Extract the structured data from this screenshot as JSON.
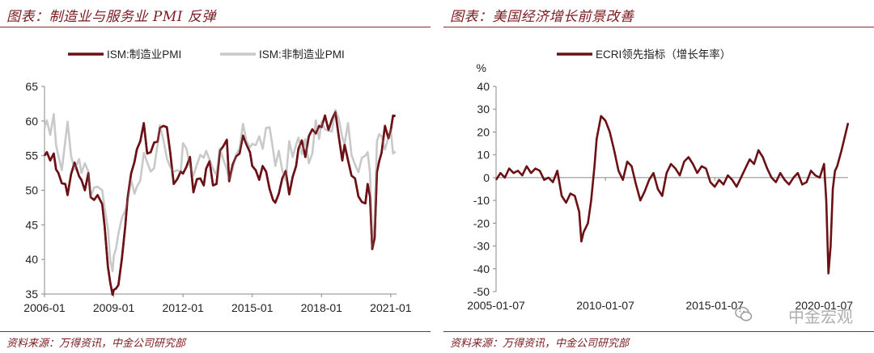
{
  "left": {
    "title": "图表：制造业与服务业 PMI 反弹",
    "source": "资料来源：万得资讯，中金公司研究部"
  },
  "right": {
    "title": "图表：美国经济增长前景改善",
    "source": "资料来源：万得资讯，中金公司研究部"
  },
  "watermark": "中金宏观",
  "chart_data": [
    {
      "type": "line",
      "title": "",
      "xlabel": "",
      "ylabel": "",
      "ylim": [
        35,
        65
      ],
      "yticks": [
        "35",
        "40",
        "45",
        "50",
        "55",
        "60",
        "65"
      ],
      "xlim": [
        2006.0,
        2021.25
      ],
      "xticks": [
        {
          "x": 2006.0,
          "label": "2006-01"
        },
        {
          "x": 2009.0,
          "label": "2009-01"
        },
        {
          "x": 2012.0,
          "label": "2012-01"
        },
        {
          "x": 2015.0,
          "label": "2015-01"
        },
        {
          "x": 2018.0,
          "label": "2018-01"
        },
        {
          "x": 2021.0,
          "label": "2021-01"
        }
      ],
      "legend_position": "top",
      "grid": false,
      "series": [
        {
          "name": "ISM:制造业PMI",
          "color": "#6b1014",
          "x": [
            2006.0,
            2006.1,
            2006.25,
            2006.4,
            2006.5,
            2006.6,
            2006.75,
            2006.9,
            2007.0,
            2007.15,
            2007.3,
            2007.5,
            2007.6,
            2007.75,
            2007.9,
            2008.0,
            2008.15,
            2008.3,
            2008.5,
            2008.6,
            2008.75,
            2008.85,
            2008.95,
            2009.0,
            2009.1,
            2009.2,
            2009.35,
            2009.5,
            2009.6,
            2009.75,
            2009.9,
            2010.0,
            2010.15,
            2010.3,
            2010.45,
            2010.6,
            2010.75,
            2010.9,
            2011.0,
            2011.15,
            2011.3,
            2011.45,
            2011.6,
            2011.75,
            2011.9,
            2012.0,
            2012.15,
            2012.3,
            2012.45,
            2012.6,
            2012.75,
            2012.9,
            2013.0,
            2013.15,
            2013.3,
            2013.45,
            2013.6,
            2013.75,
            2013.9,
            2014.0,
            2014.15,
            2014.3,
            2014.45,
            2014.6,
            2014.75,
            2014.9,
            2015.0,
            2015.15,
            2015.3,
            2015.45,
            2015.6,
            2015.75,
            2015.9,
            2016.0,
            2016.15,
            2016.3,
            2016.45,
            2016.6,
            2016.75,
            2016.9,
            2017.0,
            2017.15,
            2017.3,
            2017.45,
            2017.6,
            2017.75,
            2017.9,
            2018.0,
            2018.15,
            2018.3,
            2018.45,
            2018.6,
            2018.75,
            2018.9,
            2019.0,
            2019.15,
            2019.3,
            2019.45,
            2019.6,
            2019.75,
            2019.9,
            2020.0,
            2020.1,
            2020.2,
            2020.3,
            2020.4,
            2020.5,
            2020.6,
            2020.75,
            2020.9,
            2021.0,
            2021.1,
            2021.2
          ],
          "y": [
            55.0,
            55.5,
            54.3,
            55.3,
            53.0,
            52.5,
            51.0,
            50.9,
            49.3,
            52.3,
            54.0,
            52.0,
            51.5,
            50.0,
            52.5,
            49.0,
            48.6,
            49.3,
            48.0,
            44.9,
            38.9,
            36.6,
            34.9,
            35.6,
            35.8,
            36.3,
            40.1,
            44.8,
            48.9,
            52.4,
            54.1,
            55.9,
            57.1,
            59.7,
            55.3,
            55.5,
            56.9,
            57.0,
            59.0,
            59.3,
            59.1,
            55.3,
            50.9,
            51.6,
            52.7,
            52.4,
            53.4,
            54.8,
            49.7,
            51.6,
            51.7,
            50.7,
            53.1,
            54.2,
            50.7,
            50.9,
            55.7,
            56.4,
            57.3,
            51.3,
            53.7,
            54.9,
            55.3,
            57.9,
            56.6,
            55.5,
            53.5,
            52.9,
            51.5,
            53.5,
            52.7,
            50.2,
            48.6,
            48.2,
            49.5,
            51.7,
            52.8,
            49.4,
            51.9,
            53.5,
            56.0,
            57.2,
            54.8,
            57.8,
            58.8,
            58.2,
            59.3,
            59.1,
            60.8,
            58.7,
            60.2,
            61.3,
            57.7,
            54.3,
            56.6,
            54.3,
            52.1,
            51.7,
            49.1,
            48.3,
            48.1,
            50.9,
            49.1,
            41.5,
            43.1,
            52.6,
            54.2,
            55.4,
            59.3,
            57.5,
            58.7,
            60.8,
            60.7
          ]
        },
        {
          "name": "ISM:非制造业PMI",
          "color": "#c9c9c9",
          "x": [
            2006.0,
            2006.1,
            2006.25,
            2006.4,
            2006.5,
            2006.6,
            2006.75,
            2006.9,
            2007.0,
            2007.15,
            2007.3,
            2007.5,
            2007.6,
            2007.75,
            2007.9,
            2008.0,
            2008.15,
            2008.3,
            2008.5,
            2008.6,
            2008.75,
            2008.85,
            2008.95,
            2009.0,
            2009.1,
            2009.2,
            2009.35,
            2009.5,
            2009.6,
            2009.75,
            2009.9,
            2010.0,
            2010.15,
            2010.3,
            2010.45,
            2010.6,
            2010.75,
            2010.9,
            2011.0,
            2011.15,
            2011.3,
            2011.45,
            2011.6,
            2011.75,
            2011.9,
            2012.0,
            2012.15,
            2012.3,
            2012.45,
            2012.6,
            2012.75,
            2012.9,
            2013.0,
            2013.15,
            2013.3,
            2013.45,
            2013.6,
            2013.75,
            2013.9,
            2014.0,
            2014.15,
            2014.3,
            2014.45,
            2014.6,
            2014.75,
            2014.9,
            2015.0,
            2015.15,
            2015.3,
            2015.45,
            2015.6,
            2015.75,
            2015.9,
            2016.0,
            2016.15,
            2016.3,
            2016.45,
            2016.6,
            2016.75,
            2016.9,
            2017.0,
            2017.15,
            2017.3,
            2017.45,
            2017.6,
            2017.75,
            2017.9,
            2018.0,
            2018.15,
            2018.3,
            2018.45,
            2018.6,
            2018.75,
            2018.9,
            2019.0,
            2019.15,
            2019.3,
            2019.45,
            2019.6,
            2019.75,
            2019.9,
            2020.0,
            2020.1,
            2020.2,
            2020.3,
            2020.4,
            2020.5,
            2020.6,
            2020.75,
            2020.9,
            2021.0,
            2021.1,
            2021.2
          ],
          "y": [
            59.0,
            60.1,
            58.0,
            61.0,
            56.5,
            55.0,
            52.9,
            57.1,
            59.9,
            55.0,
            53.0,
            54.5,
            52.5,
            53.9,
            52.7,
            49.0,
            50.4,
            50.5,
            50.0,
            47.5,
            44.4,
            39.8,
            38.3,
            40.5,
            41.6,
            43.7,
            46.0,
            47.1,
            48.4,
            51.5,
            49.5,
            50.5,
            51.4,
            55.4,
            54.0,
            52.7,
            53.2,
            56.7,
            59.4,
            57.3,
            54.6,
            53.3,
            52.7,
            52.9,
            52.6,
            56.8,
            56.0,
            53.5,
            52.1,
            53.7,
            55.1,
            54.7,
            55.7,
            54.4,
            53.1,
            52.2,
            56.0,
            54.4,
            53.0,
            51.6,
            53.1,
            55.2,
            56.0,
            59.6,
            57.1,
            56.2,
            56.7,
            56.5,
            57.8,
            56.0,
            59.0,
            59.1,
            55.9,
            53.5,
            55.7,
            52.9,
            51.4,
            57.1,
            54.8,
            56.6,
            57.6,
            55.2,
            57.4,
            53.9,
            55.3,
            60.1,
            57.4,
            59.9,
            58.8,
            58.6,
            58.5,
            61.6,
            60.3,
            57.6,
            56.7,
            59.7,
            55.1,
            53.7,
            52.6,
            54.7,
            55.0,
            55.5,
            52.5,
            41.8,
            45.4,
            57.1,
            58.1,
            57.8,
            55.9,
            57.7,
            58.7,
            55.3,
            55.6
          ]
        }
      ]
    },
    {
      "type": "line",
      "title": "",
      "xlabel": "",
      "ylabel": "%",
      "ylim": [
        -50,
        40
      ],
      "yticks": [
        "-50",
        "-40",
        "-30",
        "-20",
        "-10",
        "0",
        "10",
        "20",
        "30",
        "40"
      ],
      "xlim": [
        2005.0,
        2021.1
      ],
      "xticks": [
        {
          "x": 2005.0,
          "label": "2005-01-07"
        },
        {
          "x": 2010.0,
          "label": "2010-01-07"
        },
        {
          "x": 2015.0,
          "label": "2015-01-07"
        },
        {
          "x": 2020.0,
          "label": "2020-01-07"
        }
      ],
      "legend_position": "top",
      "grid": false,
      "series": [
        {
          "name": "ECRI领先指标（增长年率）",
          "color": "#6b1014",
          "x": [
            2005.0,
            2005.2,
            2005.4,
            2005.6,
            2005.8,
            2006.0,
            2006.2,
            2006.4,
            2006.6,
            2006.8,
            2007.0,
            2007.2,
            2007.4,
            2007.6,
            2007.8,
            2008.0,
            2008.2,
            2008.4,
            2008.6,
            2008.8,
            2008.9,
            2009.0,
            2009.2,
            2009.35,
            2009.5,
            2009.6,
            2009.8,
            2010.0,
            2010.2,
            2010.4,
            2010.6,
            2010.8,
            2011.0,
            2011.2,
            2011.4,
            2011.6,
            2011.8,
            2012.0,
            2012.2,
            2012.4,
            2012.6,
            2012.8,
            2013.0,
            2013.2,
            2013.4,
            2013.6,
            2013.8,
            2014.0,
            2014.2,
            2014.4,
            2014.6,
            2014.8,
            2015.0,
            2015.2,
            2015.4,
            2015.6,
            2015.8,
            2016.0,
            2016.2,
            2016.4,
            2016.6,
            2016.8,
            2017.0,
            2017.2,
            2017.4,
            2017.6,
            2017.8,
            2018.0,
            2018.2,
            2018.4,
            2018.6,
            2018.8,
            2019.0,
            2019.2,
            2019.4,
            2019.6,
            2019.8,
            2020.0,
            2020.1,
            2020.2,
            2020.3,
            2020.4,
            2020.5,
            2020.6,
            2020.8,
            2021.0,
            2021.1
          ],
          "y": [
            -1,
            2,
            0,
            4,
            2,
            3,
            1,
            5,
            2,
            4,
            3,
            -1,
            0,
            -2,
            3,
            -8,
            -11,
            -7,
            -8,
            -15,
            -28,
            -24,
            -20,
            -10,
            5,
            17,
            27,
            25,
            20,
            12,
            3,
            -1,
            7,
            5,
            -3,
            -10,
            -6,
            -1,
            2,
            -5,
            -8,
            2,
            6,
            4,
            1,
            7,
            9,
            6,
            2,
            5,
            4,
            -2,
            -4,
            -1,
            -3,
            1,
            -1,
            -4,
            0,
            4,
            8,
            6,
            12,
            9,
            4,
            0,
            -2,
            2,
            -1,
            -3,
            0,
            2,
            -3,
            -2,
            3,
            1,
            0,
            6,
            -10,
            -42,
            -30,
            -5,
            3,
            5,
            12,
            20,
            24
          ]
        }
      ]
    }
  ]
}
